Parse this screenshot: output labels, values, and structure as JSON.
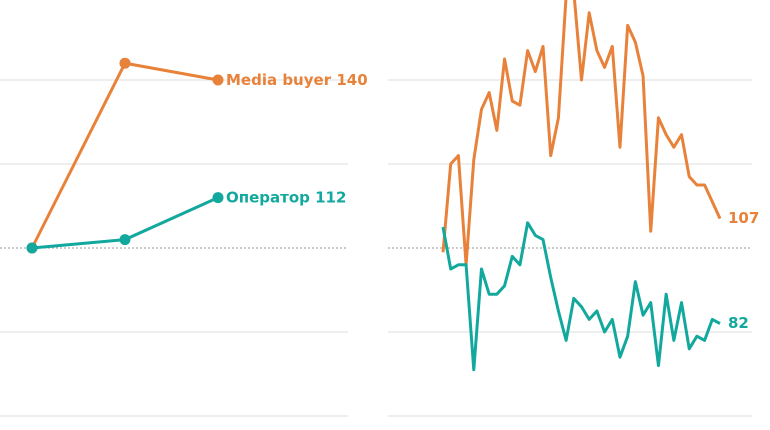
{
  "chart_data": [
    {
      "type": "line",
      "x": [
        0,
        1,
        2
      ],
      "ylim": [
        60,
        160
      ],
      "yticks": [
        60,
        80,
        100,
        120,
        140
      ],
      "baseline": 100,
      "grid": true,
      "series": [
        {
          "name": "Media buyer",
          "color": "#e8823a",
          "values": [
            100,
            144,
            140
          ]
        },
        {
          "name": "Оператор",
          "color": "#13a89e",
          "values": [
            100,
            102,
            112
          ]
        }
      ]
    },
    {
      "type": "line",
      "x": [
        1,
        2,
        3,
        4,
        5,
        6,
        7,
        8,
        9,
        10,
        11,
        12,
        13,
        14,
        15,
        16,
        17,
        18,
        19,
        20,
        21,
        22,
        23,
        24,
        25,
        26,
        27,
        28,
        29,
        30,
        31,
        32,
        33,
        34,
        35,
        36,
        37
      ],
      "ylim": [
        60,
        160
      ],
      "yticks": [
        60,
        80,
        100,
        120,
        140
      ],
      "baseline": 100,
      "grid": true,
      "series": [
        {
          "color": "#e8823a",
          "values": [
            99,
            120,
            122,
            96,
            121,
            133,
            137,
            128,
            145,
            135,
            134,
            147,
            142,
            148,
            122,
            131,
            160,
            161,
            140,
            156,
            147,
            143,
            148,
            124,
            153,
            149,
            141,
            104,
            131,
            127,
            124,
            127,
            117,
            115,
            115,
            111,
            107
          ]
        },
        {
          "color": "#13a89e",
          "values": [
            105,
            95,
            96,
            96,
            71,
            95,
            89,
            89,
            91,
            98,
            96,
            106,
            103,
            102,
            93,
            85,
            78,
            88,
            86,
            83,
            85,
            80,
            83,
            74,
            79,
            92,
            84,
            87,
            72,
            89,
            78,
            87,
            76,
            79,
            78,
            83,
            82
          ]
        }
      ]
    }
  ]
}
